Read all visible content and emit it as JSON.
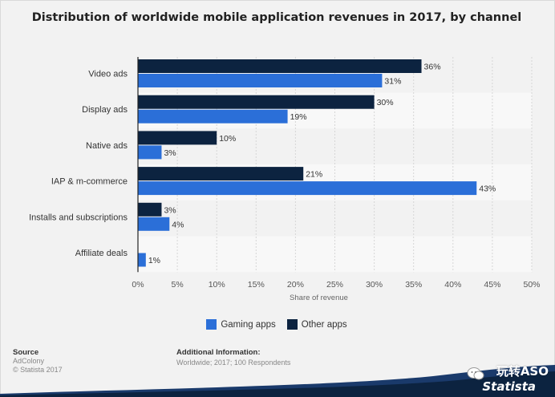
{
  "chart_data": {
    "type": "bar",
    "orientation": "horizontal",
    "title": "Distribution of worldwide mobile application revenues in 2017, by channel",
    "categories": [
      "Video ads",
      "Display ads",
      "Native ads",
      "IAP & m-commerce",
      "Installs and subscriptions",
      "Affiliate deals"
    ],
    "series": [
      {
        "name": "Other apps",
        "color": "#0c2340",
        "values": [
          36,
          30,
          10,
          21,
          3,
          null
        ]
      },
      {
        "name": "Gaming apps",
        "color": "#2b6fd8",
        "values": [
          31,
          19,
          3,
          43,
          4,
          1
        ]
      }
    ],
    "value_suffix": "%",
    "xlim": [
      0,
      50
    ],
    "xticks": [
      "0%",
      "5%",
      "10%",
      "15%",
      "20%",
      "25%",
      "30%",
      "35%",
      "40%",
      "45%",
      "50%"
    ],
    "xlabel": "Share of revenue",
    "ylabel": "",
    "legend": [
      "Gaming apps",
      "Other apps"
    ],
    "legend_position": "bottom"
  },
  "source": {
    "heading": "Source",
    "lines": [
      "AdColony",
      "© Statista 2017"
    ]
  },
  "additional_info": {
    "heading": "Additional Information:",
    "text": "Worldwide; 2017; 100 Respondents"
  },
  "branding": {
    "logo_text": "Statista",
    "watermark": "玩转ASO"
  }
}
